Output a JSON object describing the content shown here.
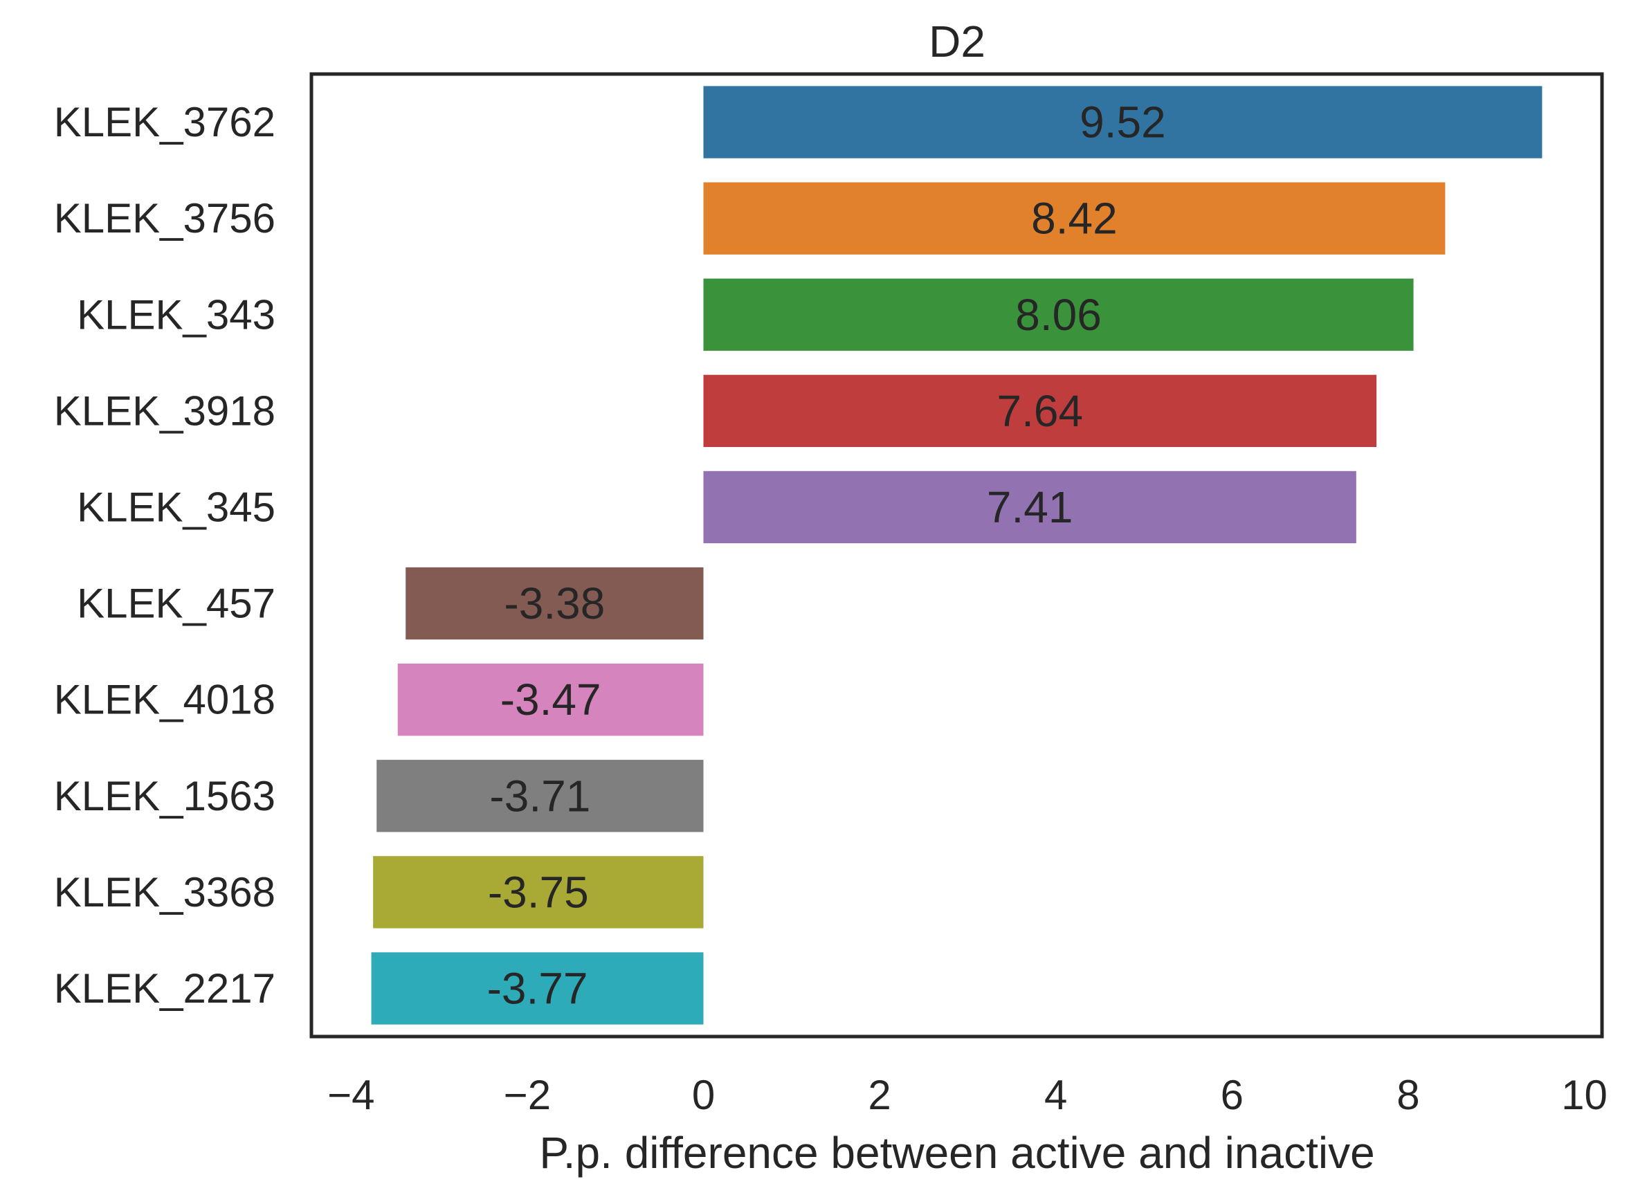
{
  "chart_data": {
    "type": "bar",
    "orientation": "horizontal",
    "title": "D2",
    "xlabel": "P.p. difference between active and inactive",
    "ylabel": "",
    "xlim": [
      -4.45,
      10.2
    ],
    "xticks": [
      -4,
      -2,
      0,
      2,
      4,
      6,
      8,
      10
    ],
    "xtick_labels": [
      "−4",
      "−2",
      "0",
      "2",
      "4",
      "6",
      "8",
      "10"
    ],
    "grid": false,
    "categories": [
      "KLEK_3762",
      "KLEK_3756",
      "KLEK_343",
      "KLEK_3918",
      "KLEK_345",
      "KLEK_457",
      "KLEK_4018",
      "KLEK_1563",
      "KLEK_3368",
      "KLEK_2217"
    ],
    "values": [
      9.52,
      8.42,
      8.06,
      7.64,
      7.41,
      -3.38,
      -3.47,
      -3.71,
      -3.75,
      -3.77
    ],
    "value_labels": [
      "9.52",
      "8.42",
      "8.06",
      "7.64",
      "7.41",
      "-3.38",
      "-3.47",
      "-3.71",
      "-3.75",
      "-3.77"
    ],
    "colors": [
      "#3274a1",
      "#e1812c",
      "#3a923a",
      "#c03d3e",
      "#9372b2",
      "#845b53",
      "#d684bd",
      "#7f7f7f",
      "#a9aa35",
      "#2eabb8"
    ]
  }
}
